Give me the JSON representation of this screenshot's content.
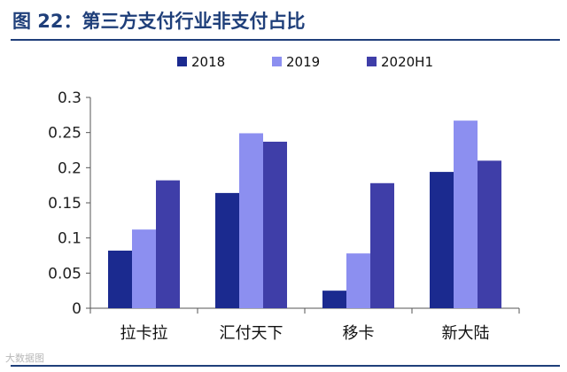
{
  "figure": {
    "title": "图 22：第三方支付行业非支付占比",
    "watermark": "大数据图"
  },
  "chart_data": {
    "type": "bar",
    "title": "",
    "xlabel": "",
    "ylabel": "",
    "categories": [
      "拉卡拉",
      "汇付天下",
      "移卡",
      "新大陆"
    ],
    "series": [
      {
        "name": "2018",
        "color": "#1b2a8f",
        "values": [
          0.082,
          0.164,
          0.025,
          0.194
        ]
      },
      {
        "name": "2019",
        "color": "#8c8ff0",
        "values": [
          0.112,
          0.249,
          0.078,
          0.267
        ]
      },
      {
        "name": "2020H1",
        "color": "#3f3ea8",
        "values": [
          0.182,
          0.237,
          0.178,
          0.21
        ]
      }
    ],
    "ylim": [
      0,
      0.3
    ],
    "yticks": [
      "0",
      "0.05",
      "0.1",
      "0.15",
      "0.2",
      "0.25",
      "0.3"
    ],
    "grid": false,
    "legend_position": "top-center"
  }
}
